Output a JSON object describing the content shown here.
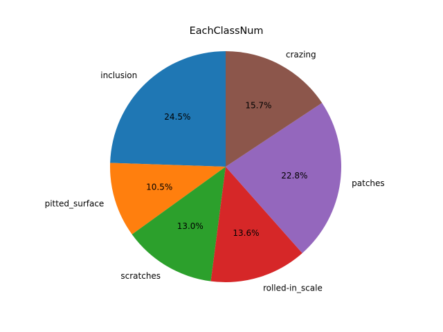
{
  "chart_data": {
    "type": "pie",
    "title": "EachClassNum",
    "categories": [
      "inclusion",
      "pitted_surface",
      "scratches",
      "rolled-in_scale",
      "patches",
      "crazing"
    ],
    "values": [
      24.5,
      10.5,
      13.0,
      13.6,
      22.8,
      15.7
    ],
    "percent_labels": [
      "24.5%",
      "10.5%",
      "13.0%",
      "13.6%",
      "22.8%",
      "15.7%"
    ],
    "colors": [
      "#1f77b4",
      "#ff7f0e",
      "#2ca02c",
      "#d62728",
      "#9467bd",
      "#8c564b"
    ],
    "start_angle_deg": 90,
    "direction": "counterclockwise"
  }
}
